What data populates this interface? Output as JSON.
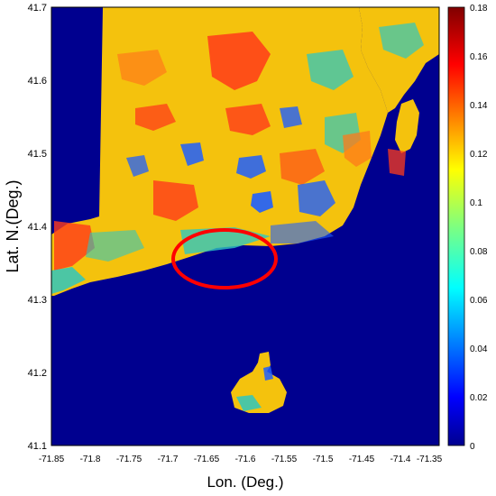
{
  "map": {
    "xlabel": "Lon. (Deg.)",
    "ylabel": "Lat. N.(Deg.)",
    "x_ticks": [
      "-71.85",
      "-71.8",
      "-71.75",
      "-71.7",
      "-71.65",
      "-71.6",
      "-71.55",
      "-71.5",
      "-71.45",
      "-71.4",
      "-71.35"
    ],
    "y_ticks": [
      "41.7",
      "41.6",
      "41.5",
      "41.4",
      "41.3",
      "41.2",
      "41.1"
    ],
    "colorbar_ticks": [
      "0.18",
      "0.16",
      "0.14",
      "0.12",
      "0.1",
      "0.08",
      "0.06",
      "0.04",
      "0.02",
      "0"
    ],
    "colorbar_range": [
      0,
      0.18
    ],
    "colormap": "jet",
    "colors": {
      "water": "#00008f",
      "land_dominant": "#f4c20d",
      "land_high": "#ff3b1a",
      "land_mid": "#2ec7c0",
      "land_low": "#1f5fff",
      "highlight_ellipse": "#ff0000"
    },
    "annotation": "red-ellipse-highlight"
  }
}
